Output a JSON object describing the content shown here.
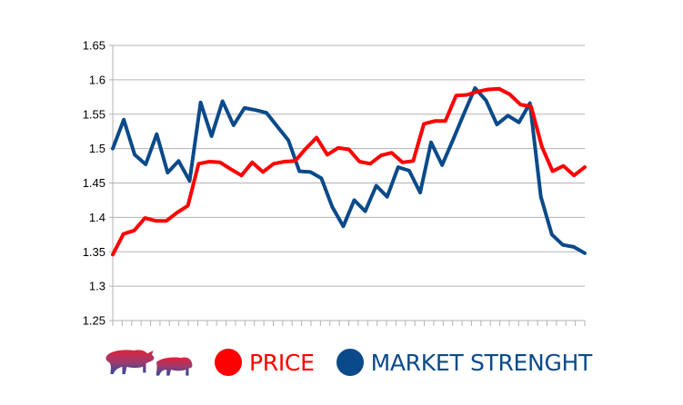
{
  "colors": {
    "price": "#ff0000",
    "market": "#0b4a8a",
    "grid": "#b3b3b3",
    "axis": "#b3b3b3"
  },
  "legend": {
    "logo_icon": "bull-bear-logo-icon",
    "items": [
      {
        "label": "PRICE",
        "color": "#ff0000"
      },
      {
        "label": "MARKET STRENGHT",
        "color": "#0b4a8a"
      }
    ]
  },
  "chart_data": {
    "type": "line",
    "title": "",
    "xlabel": "",
    "ylabel": "",
    "ylim": [
      1.25,
      1.65
    ],
    "yticks": [
      "1.25",
      "1.3",
      "1.35",
      "1.4",
      "1.45",
      "1.5",
      "1.55",
      "1.6",
      "1.65"
    ],
    "grid": true,
    "legend_position": "bottom",
    "x_count": 50,
    "series": [
      {
        "name": "PRICE",
        "color": "#ff0000",
        "values": [
          1.346,
          1.376,
          1.381,
          1.399,
          1.395,
          1.395,
          1.407,
          1.417,
          1.478,
          1.481,
          1.48,
          1.47,
          1.461,
          1.48,
          1.466,
          1.478,
          1.481,
          1.482,
          1.5,
          1.516,
          1.491,
          1.501,
          1.499,
          1.481,
          1.478,
          1.49,
          1.494,
          1.48,
          1.482,
          1.536,
          1.54,
          1.54,
          1.577,
          1.578,
          1.583,
          1.586,
          1.587,
          1.579,
          1.564,
          1.561,
          1.503,
          1.467,
          1.475,
          1.461,
          1.473
        ]
      },
      {
        "name": "MARKET STRENGHT",
        "color": "#0b4a8a",
        "values": [
          1.5,
          1.542,
          1.491,
          1.477,
          1.521,
          1.465,
          1.482,
          1.453,
          1.567,
          1.518,
          1.569,
          1.534,
          1.559,
          1.556,
          1.552,
          1.532,
          1.512,
          1.467,
          1.466,
          1.457,
          1.415,
          1.387,
          1.425,
          1.409,
          1.446,
          1.43,
          1.473,
          1.468,
          1.436,
          1.509,
          1.476,
          1.513,
          1.551,
          1.588,
          1.57,
          1.535,
          1.548,
          1.538,
          1.566,
          1.43,
          1.375,
          1.36,
          1.357,
          1.348
        ]
      }
    ]
  }
}
